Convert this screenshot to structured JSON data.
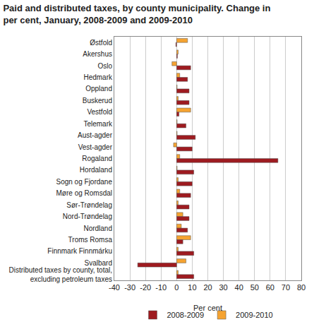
{
  "chart_data": {
    "type": "bar",
    "orientation": "horizontal",
    "title": "Paid and distributed taxes, by county municipality. Change in per cent, January, 2008-2009 and 2009-2010",
    "x_label": "Per cent",
    "categories": [
      "Østfold",
      "Akershus",
      "Oslo",
      "Hedmark",
      "Oppland",
      "Buskerud",
      "Vestfold",
      "Telemark",
      "Aust-agder",
      "Vest-agder",
      "Rogaland",
      "Hordaland",
      "Sogn og Fjordane",
      "Møre og Romsdal",
      "Sør-Trøndelag",
      "Nord-Trøndelag",
      "Nordland",
      "Troms Romsa",
      "Finnmark Finnmárku",
      "Svalbard",
      "Distributed taxes by county, total, excluding petroleum taxes"
    ],
    "series": [
      {
        "name": "2008-2009",
        "color": "#9e1b20",
        "values": [
          -0.5,
          0.5,
          9,
          7,
          8,
          8,
          1.5,
          6,
          12,
          10,
          65,
          11,
          10,
          9,
          8,
          8,
          7,
          4,
          11,
          -25,
          11
        ]
      },
      {
        "name": "2009-2010",
        "color": "#f5a331",
        "values": [
          7,
          1,
          -3,
          2,
          0.3,
          1,
          9,
          0.3,
          0.3,
          -2,
          2,
          0.3,
          1,
          2,
          1,
          4,
          3,
          9,
          1,
          6,
          1
        ]
      }
    ],
    "xlim": [
      -40,
      80
    ],
    "xticks": [
      -40,
      -30,
      -20,
      -10,
      0,
      10,
      20,
      30,
      40,
      50,
      60,
      70,
      80
    ],
    "grid": true,
    "legend": "bottom"
  }
}
